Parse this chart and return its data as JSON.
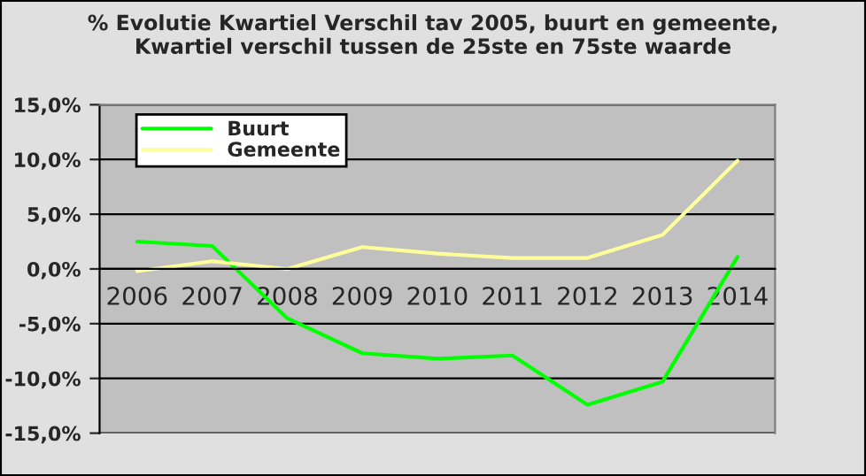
{
  "chart_data": {
    "type": "line",
    "title": "% Evolutie Kwartiel Verschil tav 2005, buurt en gemeente,\nKwartiel verschil tussen de 25ste en 75ste waarde",
    "categories": [
      "2006",
      "2007",
      "2008",
      "2009",
      "2010",
      "2011",
      "2012",
      "2013",
      "2014"
    ],
    "series": [
      {
        "name": "Buurt",
        "color": "#00ff00",
        "values": [
          2.5,
          2.1,
          -4.5,
          -7.7,
          -8.2,
          -7.9,
          -12.4,
          -10.3,
          1.1
        ]
      },
      {
        "name": "Gemeente",
        "color": "#ffff99",
        "values": [
          -0.2,
          0.7,
          0.0,
          2.0,
          1.4,
          1.0,
          1.0,
          3.1,
          9.9
        ]
      }
    ],
    "ylim": [
      -15,
      15
    ],
    "yticks": [
      {
        "value": -15,
        "label": "-15,0%"
      },
      {
        "value": -10,
        "label": "-10,0%"
      },
      {
        "value": -5,
        "label": "-5,0%"
      },
      {
        "value": 0,
        "label": "0,0%"
      },
      {
        "value": 5,
        "label": "5,0%"
      },
      {
        "value": 10,
        "label": "10,0%"
      },
      {
        "value": 15,
        "label": "15,0%"
      }
    ],
    "grid": "y",
    "legend": "top left",
    "marker": "none",
    "line_style": "solid"
  }
}
